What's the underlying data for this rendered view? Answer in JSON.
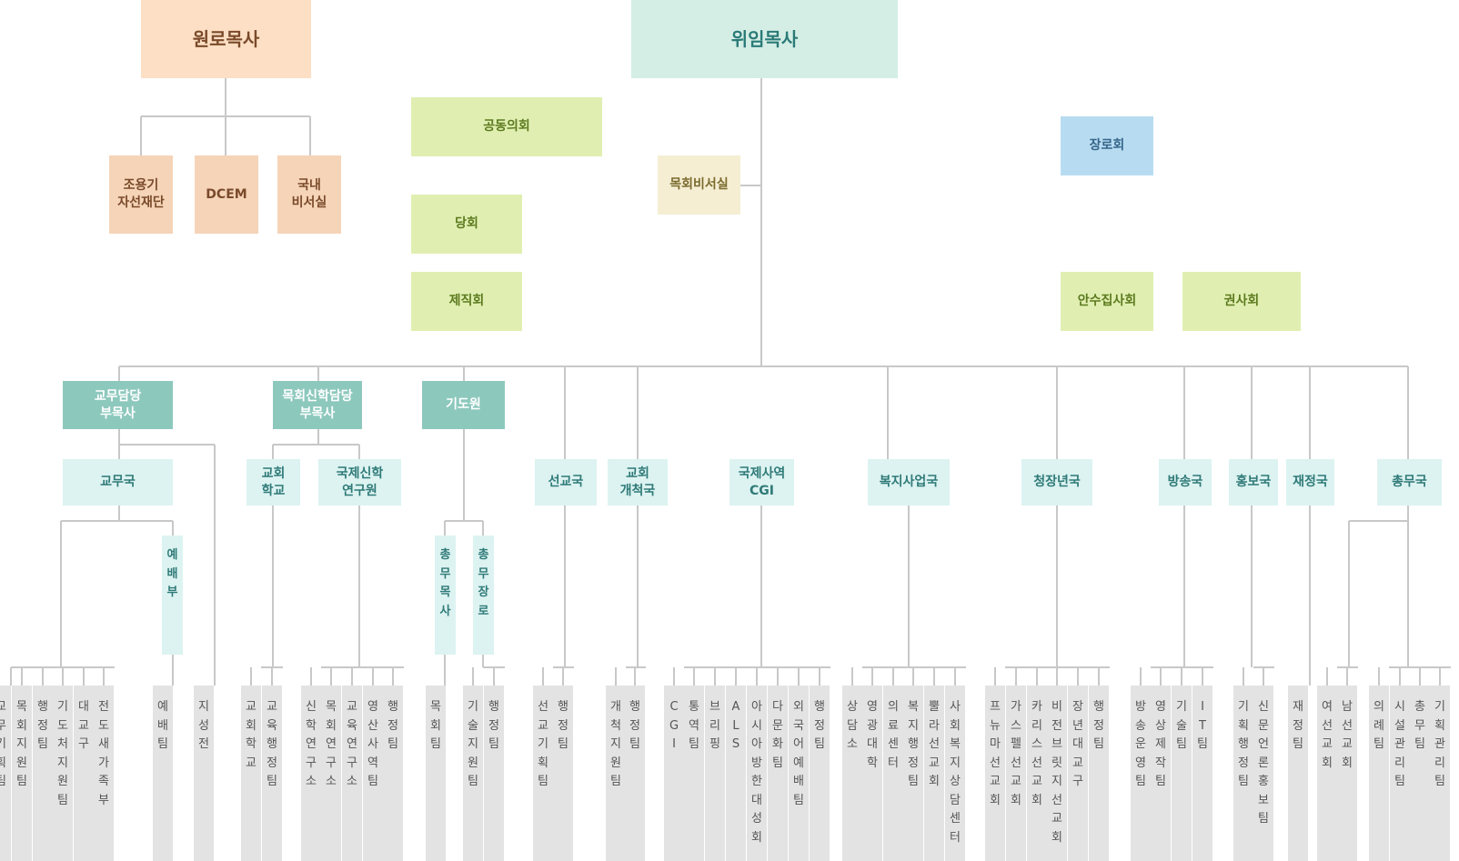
{
  "colors": {
    "line": "#c8c8c8",
    "elder_fill": "#fcdfc4",
    "elder_sub_fill": "#f5d4b8",
    "elder_text": "#7a4a2a",
    "senior_fill": "#d4eee6",
    "senior_text": "#2b7a77",
    "council_fill": "#e0efb1",
    "council_text": "#5c7a1f",
    "secretary_fill": "#f5eed2",
    "secretary_text": "#7a6a2e",
    "elders_fill": "#b7dcf1",
    "elders_text": "#35658a",
    "associate_fill": "#8dc8bd",
    "associate_text": "#ffffff",
    "dept_fill": "#dcf3f1",
    "dept_text": "#2f7a78",
    "team_fill": "#e3e3e3",
    "team_text": "#555555"
  },
  "top": {
    "emeritus": "원로목사",
    "emeritus_children": [
      "조용기\n자선재단",
      "DCEM",
      "국내\n비서실"
    ],
    "senior": "위임목사",
    "secretary_office": "목회비서실",
    "joint_council": "공동의회",
    "session": "당회",
    "officers": "제직회",
    "elders": "장로회",
    "ordained_deacons": "안수집사회",
    "exhorters": "권사회"
  },
  "associates": [
    "교무담당\n부목사",
    "목회신학담당\n부목사",
    "기도원"
  ],
  "departments": {
    "academic": "교무국",
    "church_school": "교회\n학교",
    "theology": "국제신학\n연구원",
    "missions": "선교국",
    "planting": "교회\n개척국",
    "cgi": "국제사역\nCGI",
    "welfare": "복지사업국",
    "youth": "청장년국",
    "broadcast": "방송국",
    "pr": "홍보국",
    "finance": "재정국",
    "general": "총무국"
  },
  "vertical_depts": [
    "예배부",
    "총무목사",
    "총무장로"
  ],
  "teams": [
    "교무기획팀",
    "목회지원팀",
    "행정팀",
    "기도처지원팀",
    "대교구",
    "전도새가족부",
    "예배팀",
    "지성전",
    "교회학교",
    "교육행정팀",
    "신학연구소",
    "목회연구소",
    "교육연구소",
    "영산사역팀",
    "행정팀",
    "목회팀",
    "기술지원팀",
    "행정팀",
    "선교기획팀",
    "행정팀",
    "개척지원팀",
    "행정팀",
    "CGI",
    "통역팀",
    "브리핑",
    "ALS",
    "아시아방한대성회",
    "다문화팀",
    "외국어예배팀",
    "행정팀",
    "상담소",
    "영광대학",
    "의료센터",
    "복지행정팀",
    "뿔라선교회",
    "사회복지상담센터",
    "프뉴마선교회",
    "가스펠선교회",
    "카리스선교회",
    "비전브릿지선교회",
    "장년대교구",
    "행정팀",
    "방송운영팀",
    "영상제작팀",
    "기술팀",
    "IT팀",
    "기획행정팀",
    "신문언론홍보팀",
    "재정팀",
    "여선교회",
    "남선교회",
    "의례팀",
    "시설관리팀",
    "총무팀",
    "기획관리팀"
  ]
}
